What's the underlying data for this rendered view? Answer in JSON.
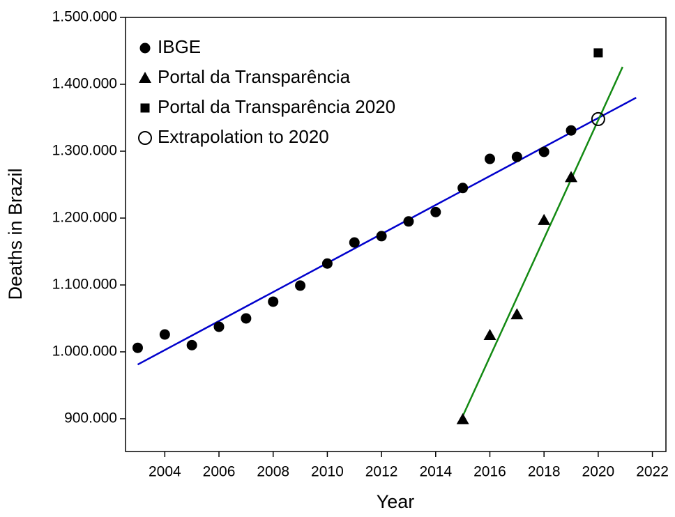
{
  "chart_data": {
    "type": "scatter",
    "xlabel": "Year",
    "ylabel": "Deaths in Brazil",
    "xlim": [
      2002.55,
      2022.5
    ],
    "xticks": [
      2004,
      2006,
      2008,
      2010,
      2012,
      2014,
      2016,
      2018,
      2020,
      2022
    ],
    "ylim": [
      851000,
      1500000
    ],
    "yticks": [
      {
        "value": 900000,
        "label": "900.000"
      },
      {
        "value": 1000000,
        "label": "1.000.000"
      },
      {
        "value": 1100000,
        "label": "1.100.000"
      },
      {
        "value": 1200000,
        "label": "1.200.000"
      },
      {
        "value": 1300000,
        "label": "1.300.000"
      },
      {
        "value": 1400000,
        "label": "1.400.000"
      },
      {
        "value": 1500000,
        "label": "1.500.000"
      }
    ],
    "legend": "upper left",
    "series": [
      {
        "name": "IBGE",
        "marker": "circle",
        "color": "#000000",
        "x": [
          2003,
          2004,
          2005,
          2006,
          2007,
          2008,
          2009,
          2010,
          2011,
          2012,
          2013,
          2014,
          2015,
          2016,
          2017,
          2018,
          2019
        ],
        "values": [
          1006000,
          1026000,
          1010000,
          1037500,
          1050000,
          1075000,
          1099000,
          1132000,
          1163500,
          1173000,
          1195000,
          1209000,
          1245000,
          1288500,
          1291500,
          1299000,
          1331000
        ]
      },
      {
        "name": "Portal da Transparência",
        "marker": "triangle",
        "color": "#000000",
        "x": [
          2015,
          2016,
          2017,
          2018,
          2019
        ],
        "values": [
          899000,
          1025000,
          1056000,
          1197000,
          1261000
        ]
      },
      {
        "name": "Portal da Transparência 2020",
        "marker": "square",
        "color": "#000000",
        "x": [
          2020
        ],
        "values": [
          1447000
        ]
      },
      {
        "name": "Extrapolation to 2020",
        "marker": "open-circle",
        "color": "#000000",
        "x": [
          2020
        ],
        "values": [
          1348000
        ]
      }
    ],
    "fit_lines": [
      {
        "color": "#0000cc",
        "x": [
          2003,
          2021.4
        ],
        "values": [
          981000,
          1380000
        ]
      },
      {
        "color": "#138a13",
        "x": [
          2015,
          2020.9
        ],
        "values": [
          904000,
          1426000
        ]
      }
    ]
  }
}
